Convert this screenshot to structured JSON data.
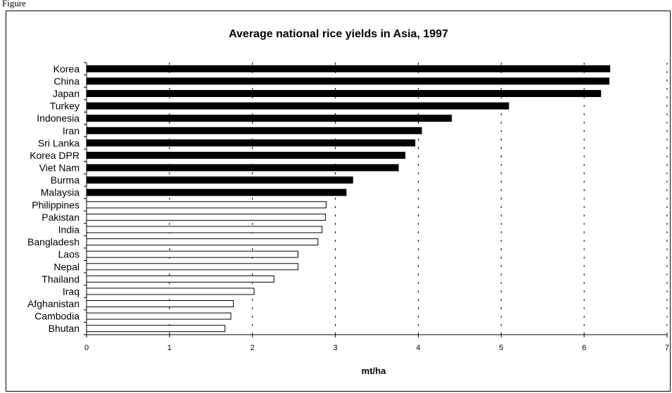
{
  "caption": "Figure",
  "chart_data": {
    "type": "bar",
    "orientation": "horizontal",
    "title": "Average national rice yields in Asia, 1997",
    "xlabel": "mt/ha",
    "ylabel": "",
    "xlim": [
      0,
      7
    ],
    "xticks": [
      0,
      1,
      2,
      3,
      4,
      5,
      6,
      7
    ],
    "grid": "vertical dashed",
    "categories": [
      "Korea",
      "China",
      "Japan",
      "Turkey",
      "Indonesia",
      "Iran",
      "Sri Lanka",
      "Korea DPR",
      "Viet Nam",
      "Burma",
      "Malaysia",
      "Philippines",
      "Pakistan",
      "India",
      "Bangladesh",
      "Laos",
      "Nepal",
      "Thailand",
      "Iraq",
      "Afghanistan",
      "Cambodia",
      "Bhutan"
    ],
    "values": [
      6.31,
      6.3,
      6.2,
      5.09,
      4.4,
      4.04,
      3.96,
      3.84,
      3.76,
      3.21,
      3.13,
      2.89,
      2.88,
      2.84,
      2.79,
      2.55,
      2.55,
      2.26,
      2.02,
      1.77,
      1.74,
      1.67
    ],
    "fills": [
      "black",
      "black",
      "black",
      "black",
      "black",
      "black",
      "black",
      "black",
      "black",
      "black",
      "black",
      "white",
      "white",
      "white",
      "white",
      "white",
      "white",
      "white",
      "white",
      "white",
      "white",
      "white"
    ],
    "colors": {
      "filled": "#000000",
      "open": "#ffffff",
      "outline": "#000000"
    }
  }
}
